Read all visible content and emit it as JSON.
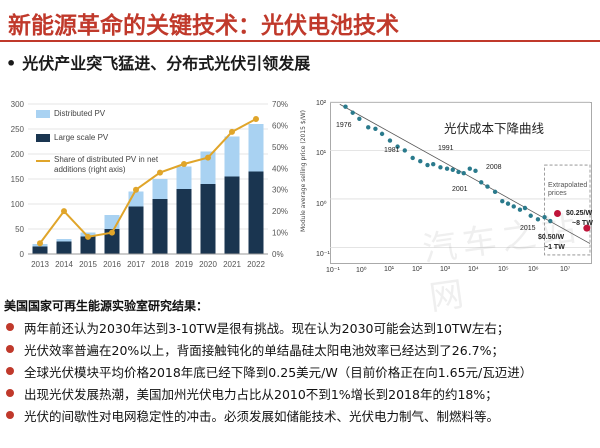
{
  "header": {
    "title": "新能源革命的关键技术：光伏电池技术",
    "subtitle_bullet": "•",
    "subtitle": "光伏产业突飞猛进、分布式光伏引领发展"
  },
  "left_chart": {
    "legend": [
      "Distributed PV",
      "Large scale PV",
      "Share of distributed PV in net additions (right axis)"
    ],
    "left_ticks": [
      "0",
      "50",
      "100",
      "150",
      "200",
      "250",
      "300"
    ],
    "right_ticks": [
      "0%",
      "10%",
      "20%",
      "30%",
      "40%",
      "50%",
      "60%",
      "70%"
    ],
    "years": [
      "2013",
      "2014",
      "2015",
      "2016",
      "2017",
      "2018",
      "2019",
      "2020",
      "2021",
      "2022"
    ]
  },
  "right_chart": {
    "annotation": "光伏成本下降曲线",
    "y_axis_label": "Module average selling price (2015 $/W)",
    "y_ticks": [
      "10²",
      "10¹",
      "10⁰",
      "10⁻¹"
    ],
    "x_ticks": [
      "10⁻¹",
      "10⁰",
      "10¹",
      "10²",
      "10³",
      "10⁴",
      "10⁵",
      "10⁶",
      "10⁷"
    ],
    "year_labels": [
      "1976",
      "1981",
      "1991",
      "2001",
      "2008",
      "2015"
    ],
    "extrapolated": "Extrapolated prices",
    "price_labels": [
      "$0.25/W",
      "~8 TW",
      "$0.50/W",
      "~1 TW"
    ]
  },
  "watermark": "汽车之站网",
  "results": {
    "heading": "美国国家可再生能源实验室研究结果：",
    "bullets": [
      "两年前还认为2030年达到3-10TW是很有挑战。现在认为2030可能会达到10TW左右；",
      "光伏效率普遍在20%以上，背面接触钝化的单结晶硅太阳电池效率已经达到了26.7%；",
      "全球光伏模块平均价格2018年底已经下降到0.25美元/W（目前价格正在向1.65元/瓦迈进）",
      "出现光伏发展热潮，美国加州光伏电力占比从2010不到1%增长到2018年的约18%；",
      "光伏的间歇性对电网稳定性的冲击。必须发展如储能技术、光伏电力制气、制燃料等。"
    ]
  },
  "chart_data": [
    {
      "type": "bar",
      "title": "",
      "categories": [
        "2013",
        "2014",
        "2015",
        "2016",
        "2017",
        "2018",
        "2019",
        "2020",
        "2021",
        "2022"
      ],
      "series": [
        {
          "name": "Large scale PV",
          "values": [
            15,
            25,
            35,
            50,
            95,
            110,
            130,
            140,
            155,
            165
          ]
        },
        {
          "name": "Distributed PV",
          "values": [
            5,
            5,
            8,
            28,
            30,
            40,
            45,
            65,
            80,
            95
          ]
        },
        {
          "name": "Share of distributed PV in net additions (right axis)",
          "values": [
            0.05,
            0.2,
            0.08,
            0.1,
            0.3,
            0.38,
            0.42,
            0.45,
            0.57,
            0.63
          ]
        }
      ],
      "ylim": [
        0,
        300
      ],
      "y2lim": [
        0,
        0.7
      ],
      "colors": {
        "large": "#1a3550",
        "distributed": "#a9d2f2",
        "share": "#e0a52a"
      }
    },
    {
      "type": "scatter",
      "title": "光伏成本下降曲线",
      "xscale": "log",
      "yscale": "log",
      "xlim": [
        0.1,
        10000000
      ],
      "ylim": [
        0.05,
        100
      ],
      "points": [
        [
          0.3,
          80
        ],
        [
          0.5,
          60
        ],
        [
          0.8,
          45
        ],
        [
          1.5,
          30
        ],
        [
          2.5,
          28
        ],
        [
          4,
          22
        ],
        [
          7,
          16
        ],
        [
          12,
          12
        ],
        [
          20,
          10
        ],
        [
          35,
          7
        ],
        [
          60,
          6
        ],
        [
          100,
          5
        ],
        [
          150,
          5.2
        ],
        [
          250,
          4.5
        ],
        [
          400,
          4.2
        ],
        [
          600,
          4.0
        ],
        [
          900,
          3.6
        ],
        [
          1300,
          3.4
        ],
        [
          2000,
          4.2
        ],
        [
          3000,
          3.8
        ],
        [
          4500,
          2.2
        ],
        [
          7000,
          1.8
        ],
        [
          12000,
          1.4
        ],
        [
          20000,
          0.9
        ],
        [
          30000,
          0.8
        ],
        [
          45000,
          0.7
        ],
        [
          70000,
          0.6
        ],
        [
          100000,
          0.65
        ],
        [
          150000,
          0.45
        ],
        [
          250000,
          0.38
        ],
        [
          400000,
          0.42
        ],
        [
          600000,
          0.35
        ]
      ],
      "extrapolated_points": [
        [
          1000000,
          0.5
        ],
        [
          8000000,
          0.25
        ]
      ]
    }
  ]
}
